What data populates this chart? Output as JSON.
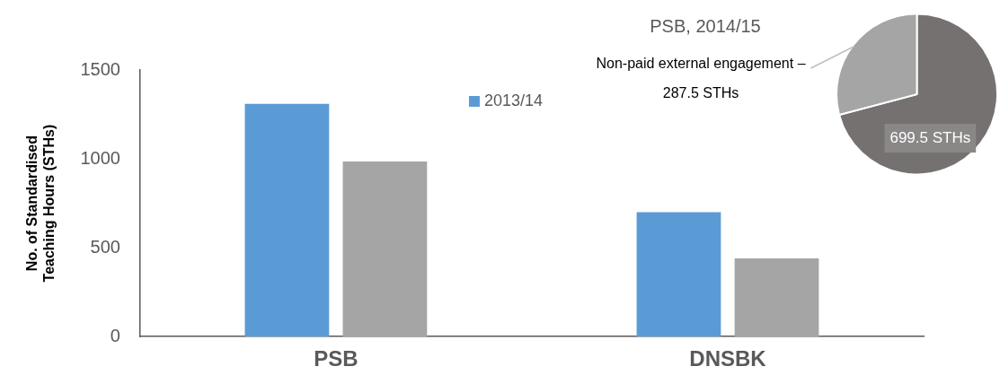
{
  "chart_data": [
    {
      "type": "bar",
      "ylabel": "No. of Standardised Teaching Hours (STHs)",
      "categories": [
        "PSB",
        "DNSBK"
      ],
      "series": [
        {
          "name": "2013/14",
          "color": "#5b9bd5",
          "values": [
            1310,
            700
          ]
        },
        {
          "color": "#a5a5a5",
          "values": [
            985,
            440
          ]
        }
      ],
      "ylim": [
        0,
        1500
      ],
      "yticks": [
        0,
        500,
        1000,
        1500
      ],
      "grid": false,
      "legend": "top"
    },
    {
      "type": "pie",
      "title": "PSB, 2014/15",
      "categories": [
        null,
        "Non-paid external engagement – 287.5 STHs"
      ],
      "values": [
        699.5,
        287.5
      ],
      "colors": [
        "#767171",
        "#a5a5a5"
      ],
      "value_labels": [
        "699.5 STHs",
        null
      ],
      "legend": false
    }
  ]
}
